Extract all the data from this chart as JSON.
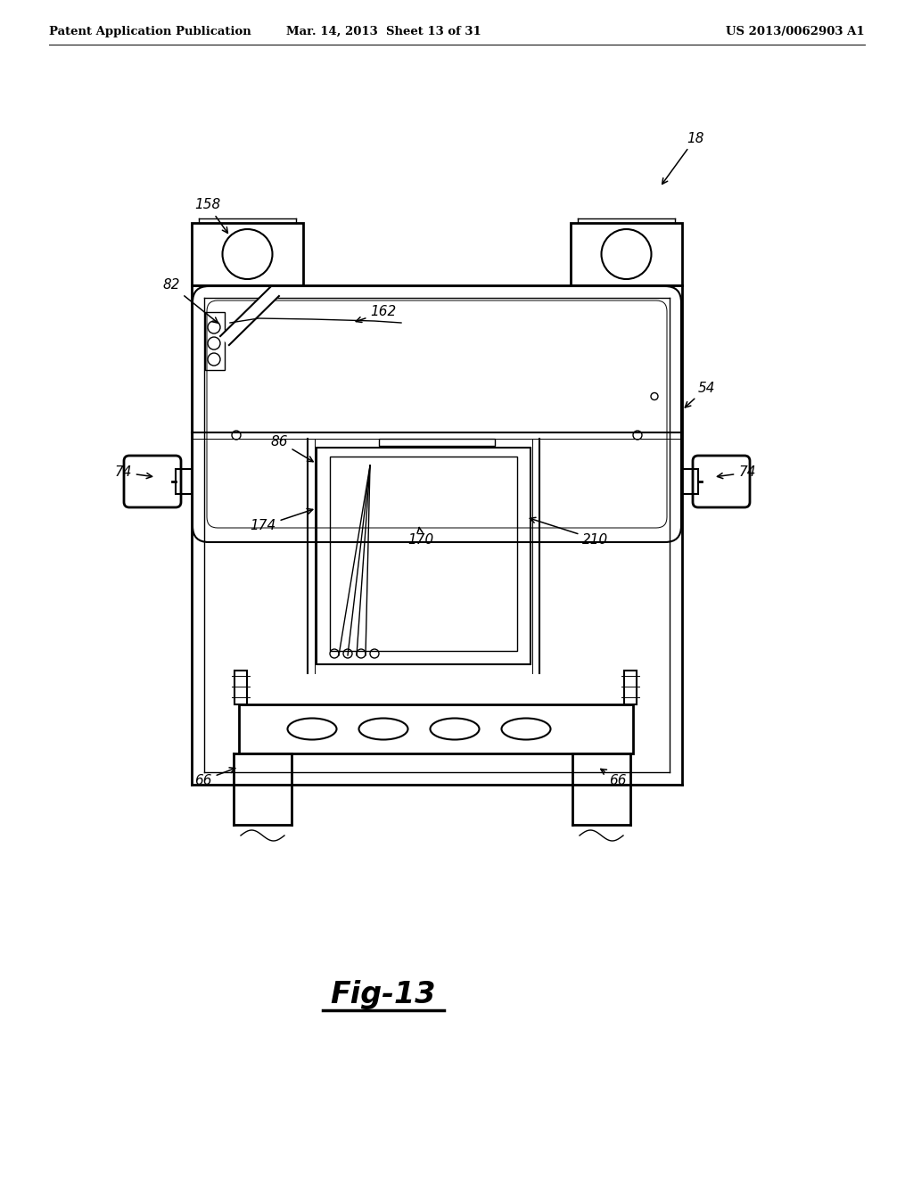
{
  "bg_color": "#ffffff",
  "line_color": "#000000",
  "header_left": "Patent Application Publication",
  "header_center": "Mar. 14, 2013  Sheet 13 of 31",
  "header_right": "US 2013/0062903 A1",
  "fig_label": "Fig-13",
  "lw_thick": 2.0,
  "lw_main": 1.5,
  "lw_thin": 1.0,
  "lw_hair": 0.7
}
